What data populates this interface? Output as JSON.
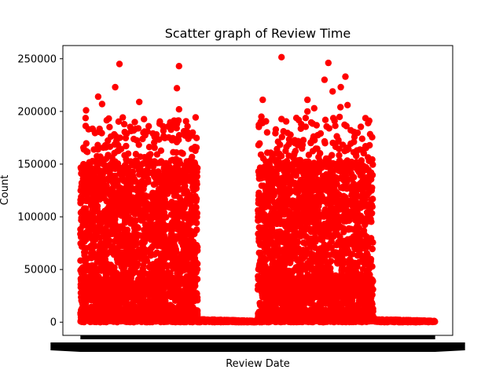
{
  "chart_data": {
    "type": "scatter",
    "title": "Scatter graph of Review Time",
    "xlabel": "Review Date",
    "ylabel": "Count",
    "ylim": [
      -12500,
      262500
    ],
    "yticks": [
      0,
      50000,
      100000,
      150000,
      200000,
      250000
    ],
    "ytick_labels": [
      "0",
      "50000",
      "100000",
      "150000",
      "200000",
      "250000"
    ],
    "x_tick_labels_overlapping": true,
    "grid": false,
    "legend": "none",
    "marker_color": "#ff0000",
    "x_domain_index": [
      0,
      1000
    ],
    "clusters": [
      {
        "x_range": [
          0,
          330
        ],
        "y_range": [
          0,
          250000
        ],
        "note": "dense cluster"
      },
      {
        "x_range": [
          330,
          500
        ],
        "y_range": [
          0,
          3000
        ],
        "note": "low plateau"
      },
      {
        "x_range": [
          500,
          825
        ],
        "y_range": [
          0,
          252000
        ],
        "note": "dense cluster"
      },
      {
        "x_range": [
          825,
          1000
        ],
        "y_range": [
          0,
          3000
        ],
        "note": "low plateau"
      }
    ],
    "outliers": [
      {
        "x": 110,
        "y": 245000
      },
      {
        "x": 278,
        "y": 243000
      },
      {
        "x": 567,
        "y": 251500
      },
      {
        "x": 699,
        "y": 246000
      },
      {
        "x": 747,
        "y": 233000
      },
      {
        "x": 688,
        "y": 230000
      },
      {
        "x": 98,
        "y": 223000
      },
      {
        "x": 272,
        "y": 222000
      },
      {
        "x": 734,
        "y": 223000
      },
      {
        "x": 711,
        "y": 219000
      },
      {
        "x": 50,
        "y": 214000
      },
      {
        "x": 514,
        "y": 211000
      },
      {
        "x": 640,
        "y": 211000
      },
      {
        "x": 166,
        "y": 209000
      },
      {
        "x": 61,
        "y": 207000
      },
      {
        "x": 753,
        "y": 206000
      },
      {
        "x": 733,
        "y": 204000
      },
      {
        "x": 659,
        "y": 203000
      },
      {
        "x": 278,
        "y": 202000
      },
      {
        "x": 16,
        "y": 201000
      },
      {
        "x": 640,
        "y": 200000
      }
    ]
  }
}
